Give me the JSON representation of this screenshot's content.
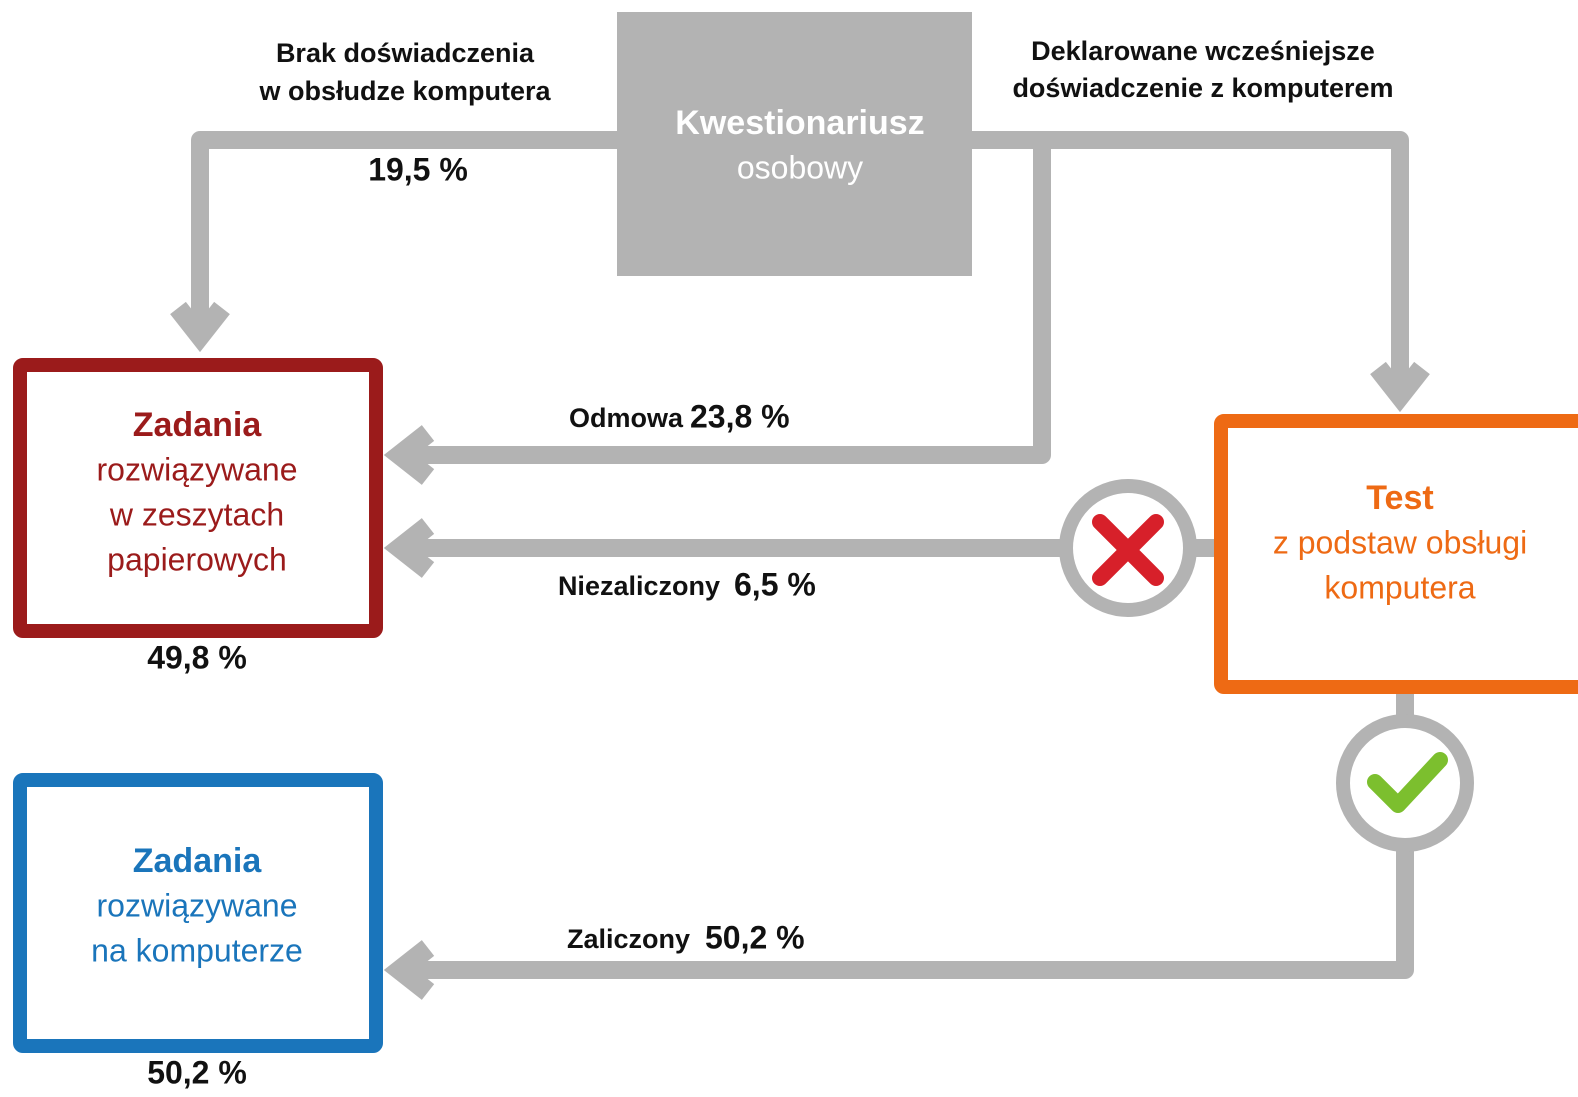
{
  "nodes": {
    "questionnaire": {
      "title": "Kwestionariusz",
      "lines": [
        "osobowy"
      ]
    },
    "paper": {
      "title": "Zadania",
      "lines": [
        "rozwiązywane",
        "w zeszytach",
        "papierowych"
      ],
      "share": "49,8 %"
    },
    "computer": {
      "title": "Zadania",
      "lines": [
        "rozwiązywane",
        "na komputerze"
      ],
      "share": "50,2 %"
    },
    "test": {
      "title": "Test",
      "lines": [
        "z podstaw obsługi",
        "komputera"
      ]
    }
  },
  "edges": {
    "no_experience": {
      "label": [
        "Brak doświadczenia",
        "w obsłudze komputera"
      ],
      "value": "19,5 %"
    },
    "declared": {
      "label": [
        "Deklarowane wcześniejsze",
        "doświadczenie z komputerem"
      ]
    },
    "refusal": {
      "label": "Odmowa",
      "value": "23,8 %"
    },
    "failed": {
      "label": "Niezaliczony",
      "value": "6,5 %"
    },
    "passed": {
      "label": "Zaliczony",
      "value": "50,2 %"
    }
  }
}
